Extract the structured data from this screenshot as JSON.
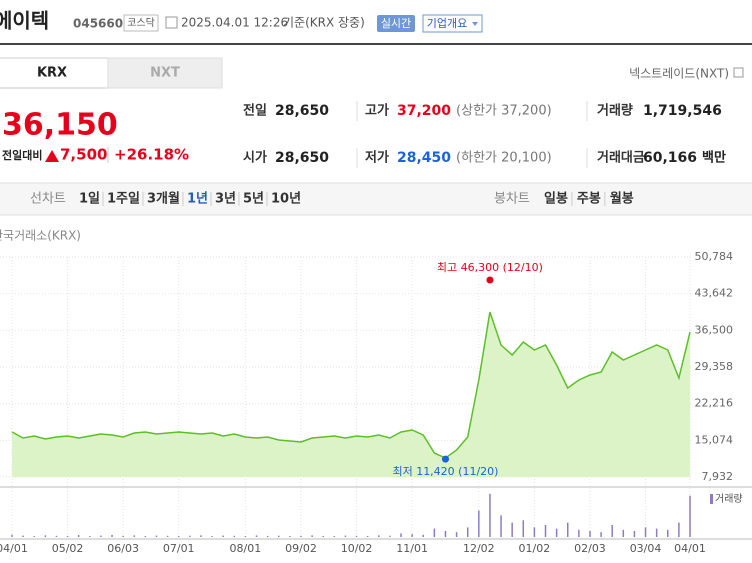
{
  "header": {
    "name": "에이텍",
    "code": "045660",
    "market": "코스닥",
    "time": "2025.04.01 12:26",
    "basis": "기준(KRX 장중)",
    "realtime": "실시간",
    "company": "기업개요"
  },
  "tabs": [
    "KRX",
    "NXT"
  ],
  "nxt_link": "넥스트레이드(NXT)",
  "quote": {
    "price": "36,150",
    "change_label": "전일대비",
    "change": "7,500",
    "change_pct": "+26.18%"
  },
  "stats": [
    [
      {
        "label": "전일",
        "value": "28,650"
      },
      {
        "label": "고가",
        "value": "37,200",
        "note": "(상한가 37,200)",
        "color": "#e6001b"
      },
      {
        "label": "거래량",
        "value": "1,719,546"
      }
    ],
    [
      {
        "label": "시가",
        "value": "28,650"
      },
      {
        "label": "저가",
        "value": "28,450",
        "note": "(하한가 20,100)",
        "color": "#1a63d8"
      },
      {
        "label": "거래대금",
        "value": "60,166",
        "unit": "백만"
      }
    ]
  ],
  "toolbar": {
    "line_label": "선차트",
    "periods": [
      "1일",
      "1주일",
      "3개월",
      "1년",
      "3년",
      "5년",
      "10년"
    ],
    "selected": 3,
    "candle_label": "봉차트",
    "candle_periods": [
      "일봉",
      "주봉",
      "월봉"
    ]
  },
  "chart_data": {
    "type": "area",
    "source": "한국거래소(KRX)",
    "color": "#5cbf2a",
    "fill": "#dcf3c8",
    "categories": [
      "04/01",
      null,
      null,
      null,
      null,
      "05/02",
      null,
      null,
      null,
      null,
      "06/03",
      null,
      null,
      null,
      null,
      "07/01",
      null,
      null,
      null,
      null,
      null,
      "08/01",
      null,
      null,
      null,
      null,
      "09/02",
      null,
      null,
      null,
      null,
      "10/02",
      null,
      null,
      null,
      null,
      "11/01",
      null,
      null,
      null,
      null,
      null,
      "12/02",
      null,
      null,
      null,
      null,
      "01/02",
      null,
      null,
      null,
      null,
      "02/03",
      null,
      null,
      null,
      null,
      "03/04",
      null,
      null,
      null,
      "04/01"
    ],
    "values": [
      16700,
      15530,
      15920,
      15330,
      15720,
      15920,
      15530,
      15920,
      16310,
      16110,
      15720,
      16500,
      16700,
      16310,
      16500,
      16700,
      16500,
      16310,
      16500,
      15920,
      16310,
      15720,
      15530,
      15720,
      15140,
      14950,
      14750,
      15530,
      15720,
      15920,
      15530,
      15920,
      15720,
      16110,
      15530,
      16700,
      17090,
      16110,
      12610,
      11630,
      13190,
      15720,
      26830,
      40070,
      33640,
      31700,
      34230,
      32670,
      33640,
      29750,
      25270,
      26830,
      27800,
      28390,
      32280,
      30720,
      31700,
      32670,
      33640,
      32670,
      27220,
      36150
    ],
    "ylim": [
      7932,
      50784
    ],
    "yticks": [
      {
        "value": 7932,
        "label": "7,932"
      },
      {
        "value": 15074,
        "label": "15,074"
      },
      {
        "value": 22216,
        "label": "22,216"
      },
      {
        "value": 29358,
        "label": "29,358"
      },
      {
        "value": 36500,
        "label": "36,500"
      },
      {
        "value": 43642,
        "label": "43,642"
      },
      {
        "value": 50784,
        "label": "50,784"
      }
    ],
    "grid": true,
    "annotations": [
      {
        "text": "최고 46,300 (12/10)",
        "value": 46300,
        "color": "#e6001b",
        "at": "max"
      },
      {
        "text": "최저 11,420 (11/20)",
        "value": 11420,
        "color": "#1a63d8",
        "at": "min"
      }
    ],
    "volume": {
      "name": "거래량",
      "color": "#8e7cc3",
      "ylim": [
        0,
        2000000
      ],
      "values": [
        90000,
        60000,
        40000,
        70000,
        50000,
        45000,
        80000,
        40000,
        60000,
        90000,
        50000,
        70000,
        40000,
        60000,
        50000,
        45000,
        55000,
        70000,
        40000,
        60000,
        50000,
        40000,
        65000,
        45000,
        55000,
        40000,
        50000,
        70000,
        45000,
        40000,
        60000,
        50000,
        45000,
        70000,
        55000,
        150000,
        120000,
        90000,
        350000,
        250000,
        200000,
        400000,
        1100000,
        1800000,
        900000,
        600000,
        700000,
        400000,
        500000,
        350000,
        600000,
        300000,
        250000,
        200000,
        500000,
        300000,
        250000,
        400000,
        350000,
        300000,
        600000,
        1719546
      ]
    }
  }
}
